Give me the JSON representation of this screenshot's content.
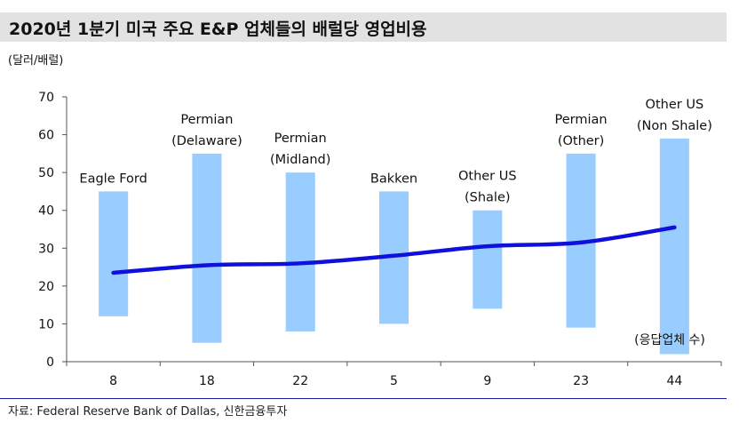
{
  "title": "2020년 1분기 미국 주요 E&P 업체들의 배럴당 영업비용",
  "unit_label": "(달러/배럴)",
  "source": "자료: Federal Reserve Bank of Dallas, 신한금융투자",
  "chart_data": {
    "type": "floating-bar-with-line",
    "ylim": [
      0,
      70
    ],
    "yticks": [
      0,
      10,
      20,
      30,
      40,
      50,
      60,
      70
    ],
    "categories": [
      "8",
      "18",
      "22",
      "5",
      "9",
      "23",
      "44"
    ],
    "x_axis_note": "(응답업체 수)",
    "ranges": [
      {
        "name": [
          "Eagle Ford"
        ],
        "low": 12,
        "high": 45
      },
      {
        "name": [
          "Permian",
          "(Delaware)"
        ],
        "low": 5,
        "high": 55
      },
      {
        "name": [
          "Permian",
          "(Midland)"
        ],
        "low": 8,
        "high": 50
      },
      {
        "name": [
          "Bakken"
        ],
        "low": 10,
        "high": 45
      },
      {
        "name": [
          "Other US",
          "(Shale)"
        ],
        "low": 14,
        "high": 40
      },
      {
        "name": [
          "Permian",
          "(Other)"
        ],
        "low": 9,
        "high": 55
      },
      {
        "name": [
          "Other US",
          "(Non Shale)"
        ],
        "low": 2,
        "high": 59
      }
    ],
    "line_values": [
      23.5,
      25.5,
      26,
      28,
      30.5,
      31.5,
      35.5
    ],
    "colors": {
      "bar": "#99ccff",
      "line": "#1010dd",
      "axis": "#555555"
    }
  }
}
